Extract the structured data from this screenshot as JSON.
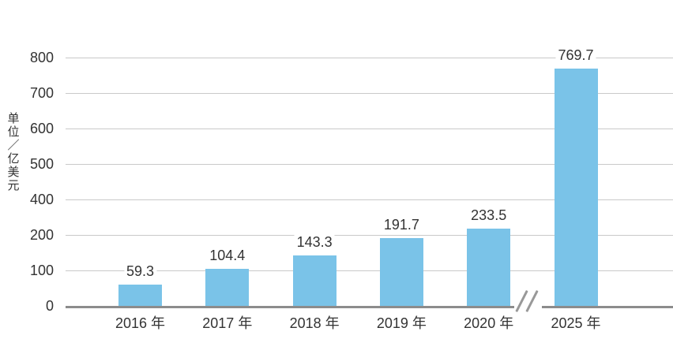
{
  "chart_data": {
    "type": "bar",
    "title": "",
    "xlabel": "",
    "ylabel": "单位／亿美元",
    "categories": [
      "2016 年",
      "2017 年",
      "2018 年",
      "2019 年",
      "2020 年",
      "2025 年"
    ],
    "values": [
      59.3,
      104.4,
      143.3,
      191.7,
      233.5,
      769.7
    ],
    "value_labels": [
      "59.3",
      "104.4",
      "143.3",
      "191.7",
      "233.5",
      "769.7"
    ],
    "yticks": [
      0,
      100,
      200,
      400,
      500,
      600,
      700,
      800
    ],
    "ytick_labels": [
      "0",
      "100",
      "200",
      "400",
      "500",
      "600",
      "700",
      "800"
    ],
    "ylim": [
      0,
      800
    ],
    "grid": true,
    "legend": false,
    "axis_break_between": [
      "2020 年",
      "2025 年"
    ],
    "colors": {
      "bar": "#7AC3E8",
      "gridline": "#C9C9C9",
      "axis": "#8C8C8C",
      "text": "#333333",
      "break_mark": "#999999",
      "background": "#FFFFFF"
    }
  }
}
